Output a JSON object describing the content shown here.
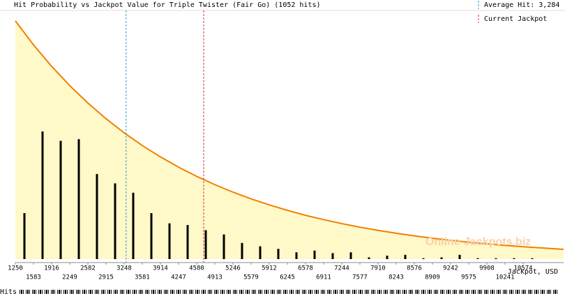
{
  "chart_data": {
    "type": "bar",
    "title": "Hit Probability vs Jackpot Value for Triple Twister (Fair Go) (1052 hits)",
    "x_label": "Jackpot, USD",
    "watermark": "Online-Jackpots.biz",
    "rug_label": "Hits",
    "x": [
      1416.5,
      1749.5,
      2082.5,
      2415.5,
      2748.5,
      3081.5,
      3414.5,
      3747.5,
      4080.5,
      4413.5,
      4746.5,
      5079.5,
      5412.5,
      5745.5,
      6078.5,
      6411.5,
      6744.5,
      7077.5,
      7410.5,
      7743.5,
      8076.5,
      8409.5,
      8742.5,
      9075.5,
      9408.5,
      9741.5,
      10074.5,
      10407.5,
      10740.5
    ],
    "values": [
      54,
      150,
      139,
      141,
      100,
      89,
      78,
      54,
      42,
      40,
      34,
      29,
      19,
      15,
      12,
      8,
      10,
      7,
      8,
      2,
      4,
      5,
      1,
      2,
      5,
      1,
      1,
      1,
      1
    ],
    "color": "#000000",
    "curve": {
      "x": [
        1250,
        1583,
        1916,
        2249,
        2582,
        2915,
        3248,
        3581,
        3914,
        4247,
        4580,
        4913,
        5246,
        5579,
        5912,
        6245,
        6578,
        6911,
        7244,
        7577,
        7910,
        8243,
        8576,
        8909,
        9242,
        9575,
        9908,
        10241,
        10574,
        11317
      ],
      "values": [
        280,
        251.9,
        226.6,
        203.9,
        183.4,
        165.0,
        148.4,
        133.5,
        120.1,
        108.1,
        97.2,
        87.5,
        78.7,
        70.8,
        63.7,
        57.3,
        51.5,
        46.4,
        41.7,
        37.5,
        33.8,
        30.4,
        27.3,
        24.6,
        22.1,
        19.9,
        17.9,
        16.1,
        14.5,
        11.5
      ],
      "color": "#f08000",
      "fill": "#fff8c8"
    },
    "reference_lines": [
      {
        "name": "Average Hit: 3,284",
        "value": 3284,
        "color": "#3399cc"
      },
      {
        "name": "Current Jackpot",
        "value": 4708,
        "color": "#cc3333"
      }
    ],
    "xlim": [
      1250,
      11317
    ],
    "ylim": [
      0,
      280
    ],
    "xticks": [
      1250,
      1583,
      1916,
      2249,
      2582,
      2915,
      3248,
      3581,
      3914,
      4247,
      4580,
      4913,
      5246,
      5579,
      5912,
      6245,
      6578,
      6911,
      7244,
      7577,
      7910,
      8243,
      8576,
      8909,
      9242,
      9575,
      9908,
      10241,
      10574
    ]
  }
}
